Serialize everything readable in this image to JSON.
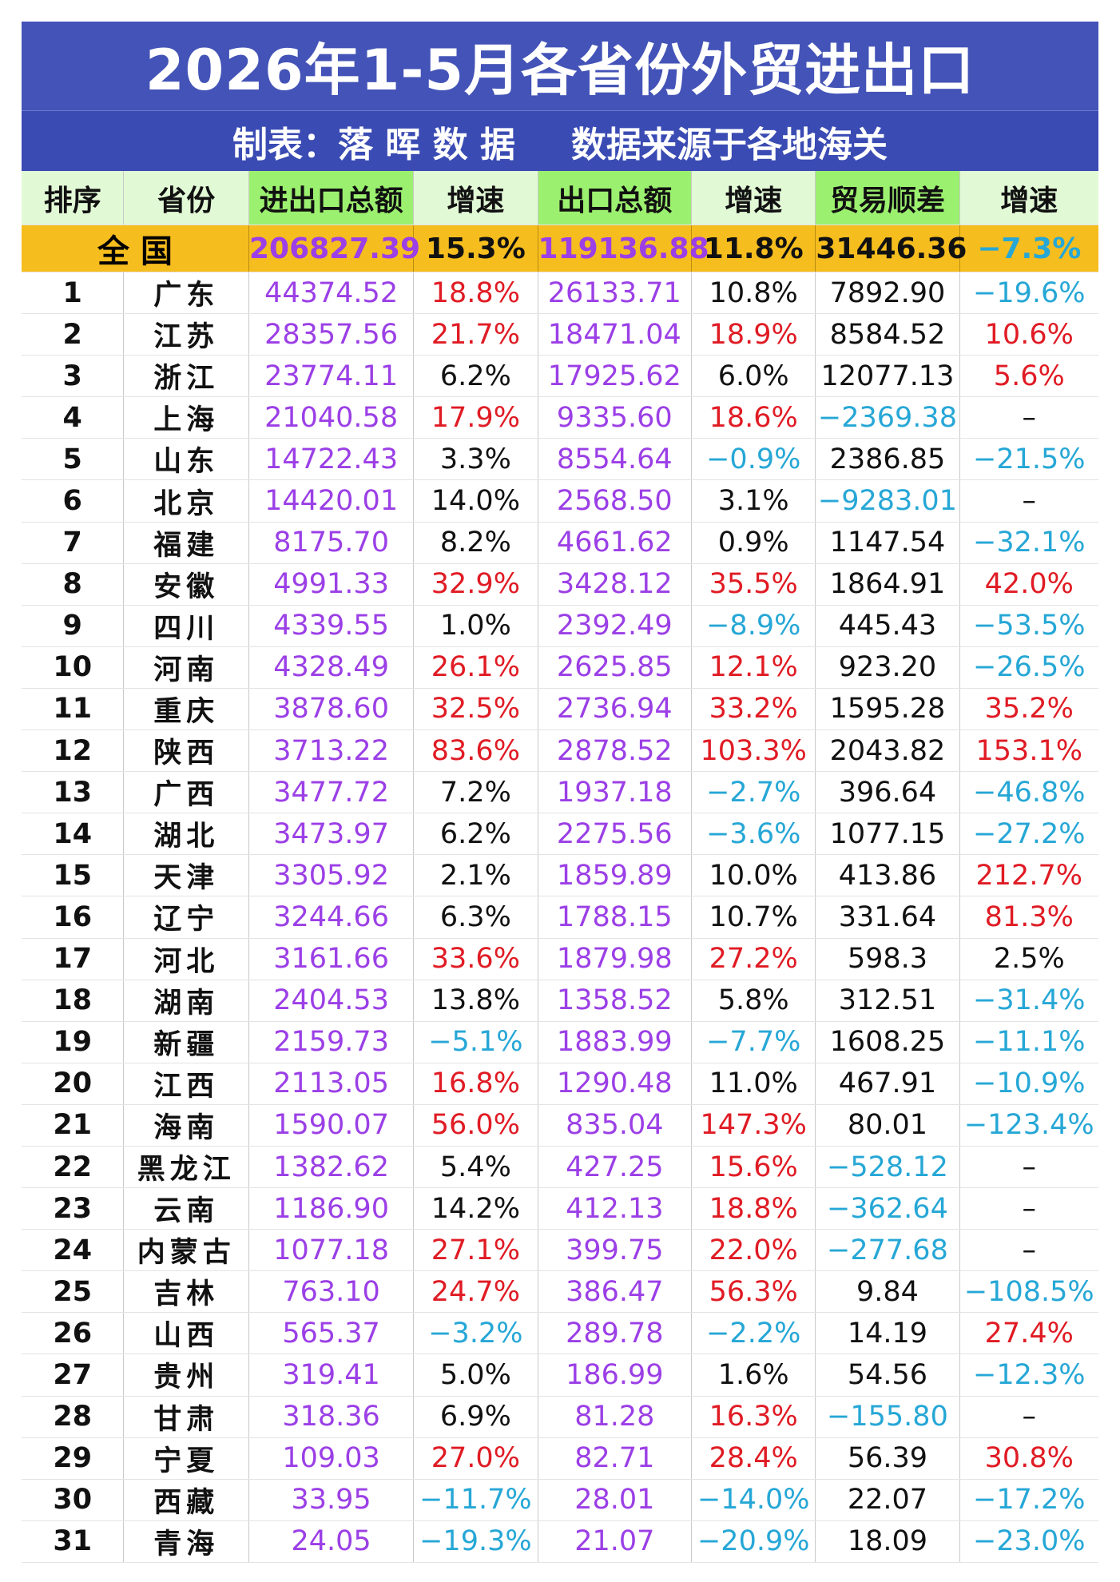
{
  "title": "2026年1-5月各省份外贸进出口",
  "subtitle_left": "制表：落 晖 数 据",
  "subtitle_right": "数据来源于各地海关",
  "headers": [
    "排序",
    "省份",
    "进出口总额",
    "增速",
    "出口总额",
    "增速",
    "贸易顺差",
    "增速"
  ],
  "colors": {
    "title_bg": "#4353b7",
    "national_row": "#f6bd1e",
    "header_green": "#9cf06f",
    "purple": "#9b3fe6",
    "red": "#e01b24",
    "blue": "#26a7d6"
  },
  "national": {
    "label": "全 国",
    "total": "206827.39",
    "total_growth": "15.3%",
    "export": "119136.88",
    "export_growth": "11.8%",
    "surplus": "31446.36",
    "surplus_growth": "−7.3%"
  },
  "rows": [
    {
      "rank": "1",
      "province": "广东",
      "total": "44374.52",
      "tg": "18.8%",
      "tg_c": "red",
      "export": "26133.71",
      "eg": "10.8%",
      "eg_c": "black",
      "surplus": "7892.90",
      "s_c": "black",
      "sg": "−19.6%",
      "sg_c": "blue"
    },
    {
      "rank": "2",
      "province": "江苏",
      "total": "28357.56",
      "tg": "21.7%",
      "tg_c": "red",
      "export": "18471.04",
      "eg": "18.9%",
      "eg_c": "red",
      "surplus": "8584.52",
      "s_c": "black",
      "sg": "10.6%",
      "sg_c": "red"
    },
    {
      "rank": "3",
      "province": "浙江",
      "total": "23774.11",
      "tg": "6.2%",
      "tg_c": "black",
      "export": "17925.62",
      "eg": "6.0%",
      "eg_c": "black",
      "surplus": "12077.13",
      "s_c": "black",
      "sg": "5.6%",
      "sg_c": "red"
    },
    {
      "rank": "4",
      "province": "上海",
      "total": "21040.58",
      "tg": "17.9%",
      "tg_c": "red",
      "export": "9335.60",
      "eg": "18.6%",
      "eg_c": "red",
      "surplus": "−2369.38",
      "s_c": "blue",
      "sg": "–",
      "sg_c": "black"
    },
    {
      "rank": "5",
      "province": "山东",
      "total": "14722.43",
      "tg": "3.3%",
      "tg_c": "black",
      "export": "8554.64",
      "eg": "−0.9%",
      "eg_c": "blue",
      "surplus": "2386.85",
      "s_c": "black",
      "sg": "−21.5%",
      "sg_c": "blue"
    },
    {
      "rank": "6",
      "province": "北京",
      "total": "14420.01",
      "tg": "14.0%",
      "tg_c": "black",
      "export": "2568.50",
      "eg": "3.1%",
      "eg_c": "black",
      "surplus": "−9283.01",
      "s_c": "blue",
      "sg": "–",
      "sg_c": "black"
    },
    {
      "rank": "7",
      "province": "福建",
      "total": "8175.70",
      "tg": "8.2%",
      "tg_c": "black",
      "export": "4661.62",
      "eg": "0.9%",
      "eg_c": "black",
      "surplus": "1147.54",
      "s_c": "black",
      "sg": "−32.1%",
      "sg_c": "blue"
    },
    {
      "rank": "8",
      "province": "安徽",
      "total": "4991.33",
      "tg": "32.9%",
      "tg_c": "red",
      "export": "3428.12",
      "eg": "35.5%",
      "eg_c": "red",
      "surplus": "1864.91",
      "s_c": "black",
      "sg": "42.0%",
      "sg_c": "red"
    },
    {
      "rank": "9",
      "province": "四川",
      "total": "4339.55",
      "tg": "1.0%",
      "tg_c": "black",
      "export": "2392.49",
      "eg": "−8.9%",
      "eg_c": "blue",
      "surplus": "445.43",
      "s_c": "black",
      "sg": "−53.5%",
      "sg_c": "blue"
    },
    {
      "rank": "10",
      "province": "河南",
      "total": "4328.49",
      "tg": "26.1%",
      "tg_c": "red",
      "export": "2625.85",
      "eg": "12.1%",
      "eg_c": "red",
      "surplus": "923.20",
      "s_c": "black",
      "sg": "−26.5%",
      "sg_c": "blue"
    },
    {
      "rank": "11",
      "province": "重庆",
      "total": "3878.60",
      "tg": "32.5%",
      "tg_c": "red",
      "export": "2736.94",
      "eg": "33.2%",
      "eg_c": "red",
      "surplus": "1595.28",
      "s_c": "black",
      "sg": "35.2%",
      "sg_c": "red"
    },
    {
      "rank": "12",
      "province": "陕西",
      "total": "3713.22",
      "tg": "83.6%",
      "tg_c": "red",
      "export": "2878.52",
      "eg": "103.3%",
      "eg_c": "red",
      "surplus": "2043.82",
      "s_c": "black",
      "sg": "153.1%",
      "sg_c": "red"
    },
    {
      "rank": "13",
      "province": "广西",
      "total": "3477.72",
      "tg": "7.2%",
      "tg_c": "black",
      "export": "1937.18",
      "eg": "−2.7%",
      "eg_c": "blue",
      "surplus": "396.64",
      "s_c": "black",
      "sg": "−46.8%",
      "sg_c": "blue"
    },
    {
      "rank": "14",
      "province": "湖北",
      "total": "3473.97",
      "tg": "6.2%",
      "tg_c": "black",
      "export": "2275.56",
      "eg": "−3.6%",
      "eg_c": "blue",
      "surplus": "1077.15",
      "s_c": "black",
      "sg": "−27.2%",
      "sg_c": "blue"
    },
    {
      "rank": "15",
      "province": "天津",
      "total": "3305.92",
      "tg": "2.1%",
      "tg_c": "black",
      "export": "1859.89",
      "eg": "10.0%",
      "eg_c": "black",
      "surplus": "413.86",
      "s_c": "black",
      "sg": "212.7%",
      "sg_c": "red"
    },
    {
      "rank": "16",
      "province": "辽宁",
      "total": "3244.66",
      "tg": "6.3%",
      "tg_c": "black",
      "export": "1788.15",
      "eg": "10.7%",
      "eg_c": "black",
      "surplus": "331.64",
      "s_c": "black",
      "sg": "81.3%",
      "sg_c": "red"
    },
    {
      "rank": "17",
      "province": "河北",
      "total": "3161.66",
      "tg": "33.6%",
      "tg_c": "red",
      "export": "1879.98",
      "eg": "27.2%",
      "eg_c": "red",
      "surplus": "598.3",
      "s_c": "black",
      "sg": "2.5%",
      "sg_c": "black"
    },
    {
      "rank": "18",
      "province": "湖南",
      "total": "2404.53",
      "tg": "13.8%",
      "tg_c": "black",
      "export": "1358.52",
      "eg": "5.8%",
      "eg_c": "black",
      "surplus": "312.51",
      "s_c": "black",
      "sg": "−31.4%",
      "sg_c": "blue"
    },
    {
      "rank": "19",
      "province": "新疆",
      "total": "2159.73",
      "tg": "−5.1%",
      "tg_c": "blue",
      "export": "1883.99",
      "eg": "−7.7%",
      "eg_c": "blue",
      "surplus": "1608.25",
      "s_c": "black",
      "sg": "−11.1%",
      "sg_c": "blue"
    },
    {
      "rank": "20",
      "province": "江西",
      "total": "2113.05",
      "tg": "16.8%",
      "tg_c": "red",
      "export": "1290.48",
      "eg": "11.0%",
      "eg_c": "black",
      "surplus": "467.91",
      "s_c": "black",
      "sg": "−10.9%",
      "sg_c": "blue"
    },
    {
      "rank": "21",
      "province": "海南",
      "total": "1590.07",
      "tg": "56.0%",
      "tg_c": "red",
      "export": "835.04",
      "eg": "147.3%",
      "eg_c": "red",
      "surplus": "80.01",
      "s_c": "black",
      "sg": "−123.4%",
      "sg_c": "blue"
    },
    {
      "rank": "22",
      "province": "黑龙江",
      "total": "1382.62",
      "tg": "5.4%",
      "tg_c": "black",
      "export": "427.25",
      "eg": "15.6%",
      "eg_c": "red",
      "surplus": "−528.12",
      "s_c": "blue",
      "sg": "–",
      "sg_c": "black"
    },
    {
      "rank": "23",
      "province": "云南",
      "total": "1186.90",
      "tg": "14.2%",
      "tg_c": "black",
      "export": "412.13",
      "eg": "18.8%",
      "eg_c": "red",
      "surplus": "−362.64",
      "s_c": "blue",
      "sg": "–",
      "sg_c": "black"
    },
    {
      "rank": "24",
      "province": "内蒙古",
      "total": "1077.18",
      "tg": "27.1%",
      "tg_c": "red",
      "export": "399.75",
      "eg": "22.0%",
      "eg_c": "red",
      "surplus": "−277.68",
      "s_c": "blue",
      "sg": "–",
      "sg_c": "black"
    },
    {
      "rank": "25",
      "province": "吉林",
      "total": "763.10",
      "tg": "24.7%",
      "tg_c": "red",
      "export": "386.47",
      "eg": "56.3%",
      "eg_c": "red",
      "surplus": "9.84",
      "s_c": "black",
      "sg": "−108.5%",
      "sg_c": "blue"
    },
    {
      "rank": "26",
      "province": "山西",
      "total": "565.37",
      "tg": "−3.2%",
      "tg_c": "blue",
      "export": "289.78",
      "eg": "−2.2%",
      "eg_c": "blue",
      "surplus": "14.19",
      "s_c": "black",
      "sg": "27.4%",
      "sg_c": "red"
    },
    {
      "rank": "27",
      "province": "贵州",
      "total": "319.41",
      "tg": "5.0%",
      "tg_c": "black",
      "export": "186.99",
      "eg": "1.6%",
      "eg_c": "black",
      "surplus": "54.56",
      "s_c": "black",
      "sg": "−12.3%",
      "sg_c": "blue"
    },
    {
      "rank": "28",
      "province": "甘肃",
      "total": "318.36",
      "tg": "6.9%",
      "tg_c": "black",
      "export": "81.28",
      "eg": "16.3%",
      "eg_c": "red",
      "surplus": "−155.80",
      "s_c": "blue",
      "sg": "–",
      "sg_c": "black"
    },
    {
      "rank": "29",
      "province": "宁夏",
      "total": "109.03",
      "tg": "27.0%",
      "tg_c": "red",
      "export": "82.71",
      "eg": "28.4%",
      "eg_c": "red",
      "surplus": "56.39",
      "s_c": "black",
      "sg": "30.8%",
      "sg_c": "red"
    },
    {
      "rank": "30",
      "province": "西藏",
      "total": "33.95",
      "tg": "−11.7%",
      "tg_c": "blue",
      "export": "28.01",
      "eg": "−14.0%",
      "eg_c": "blue",
      "surplus": "22.07",
      "s_c": "black",
      "sg": "−17.2%",
      "sg_c": "blue"
    },
    {
      "rank": "31",
      "province": "青海",
      "total": "24.05",
      "tg": "−19.3%",
      "tg_c": "blue",
      "export": "21.07",
      "eg": "−20.9%",
      "eg_c": "blue",
      "surplus": "18.09",
      "s_c": "black",
      "sg": "−23.0%",
      "sg_c": "blue"
    }
  ]
}
